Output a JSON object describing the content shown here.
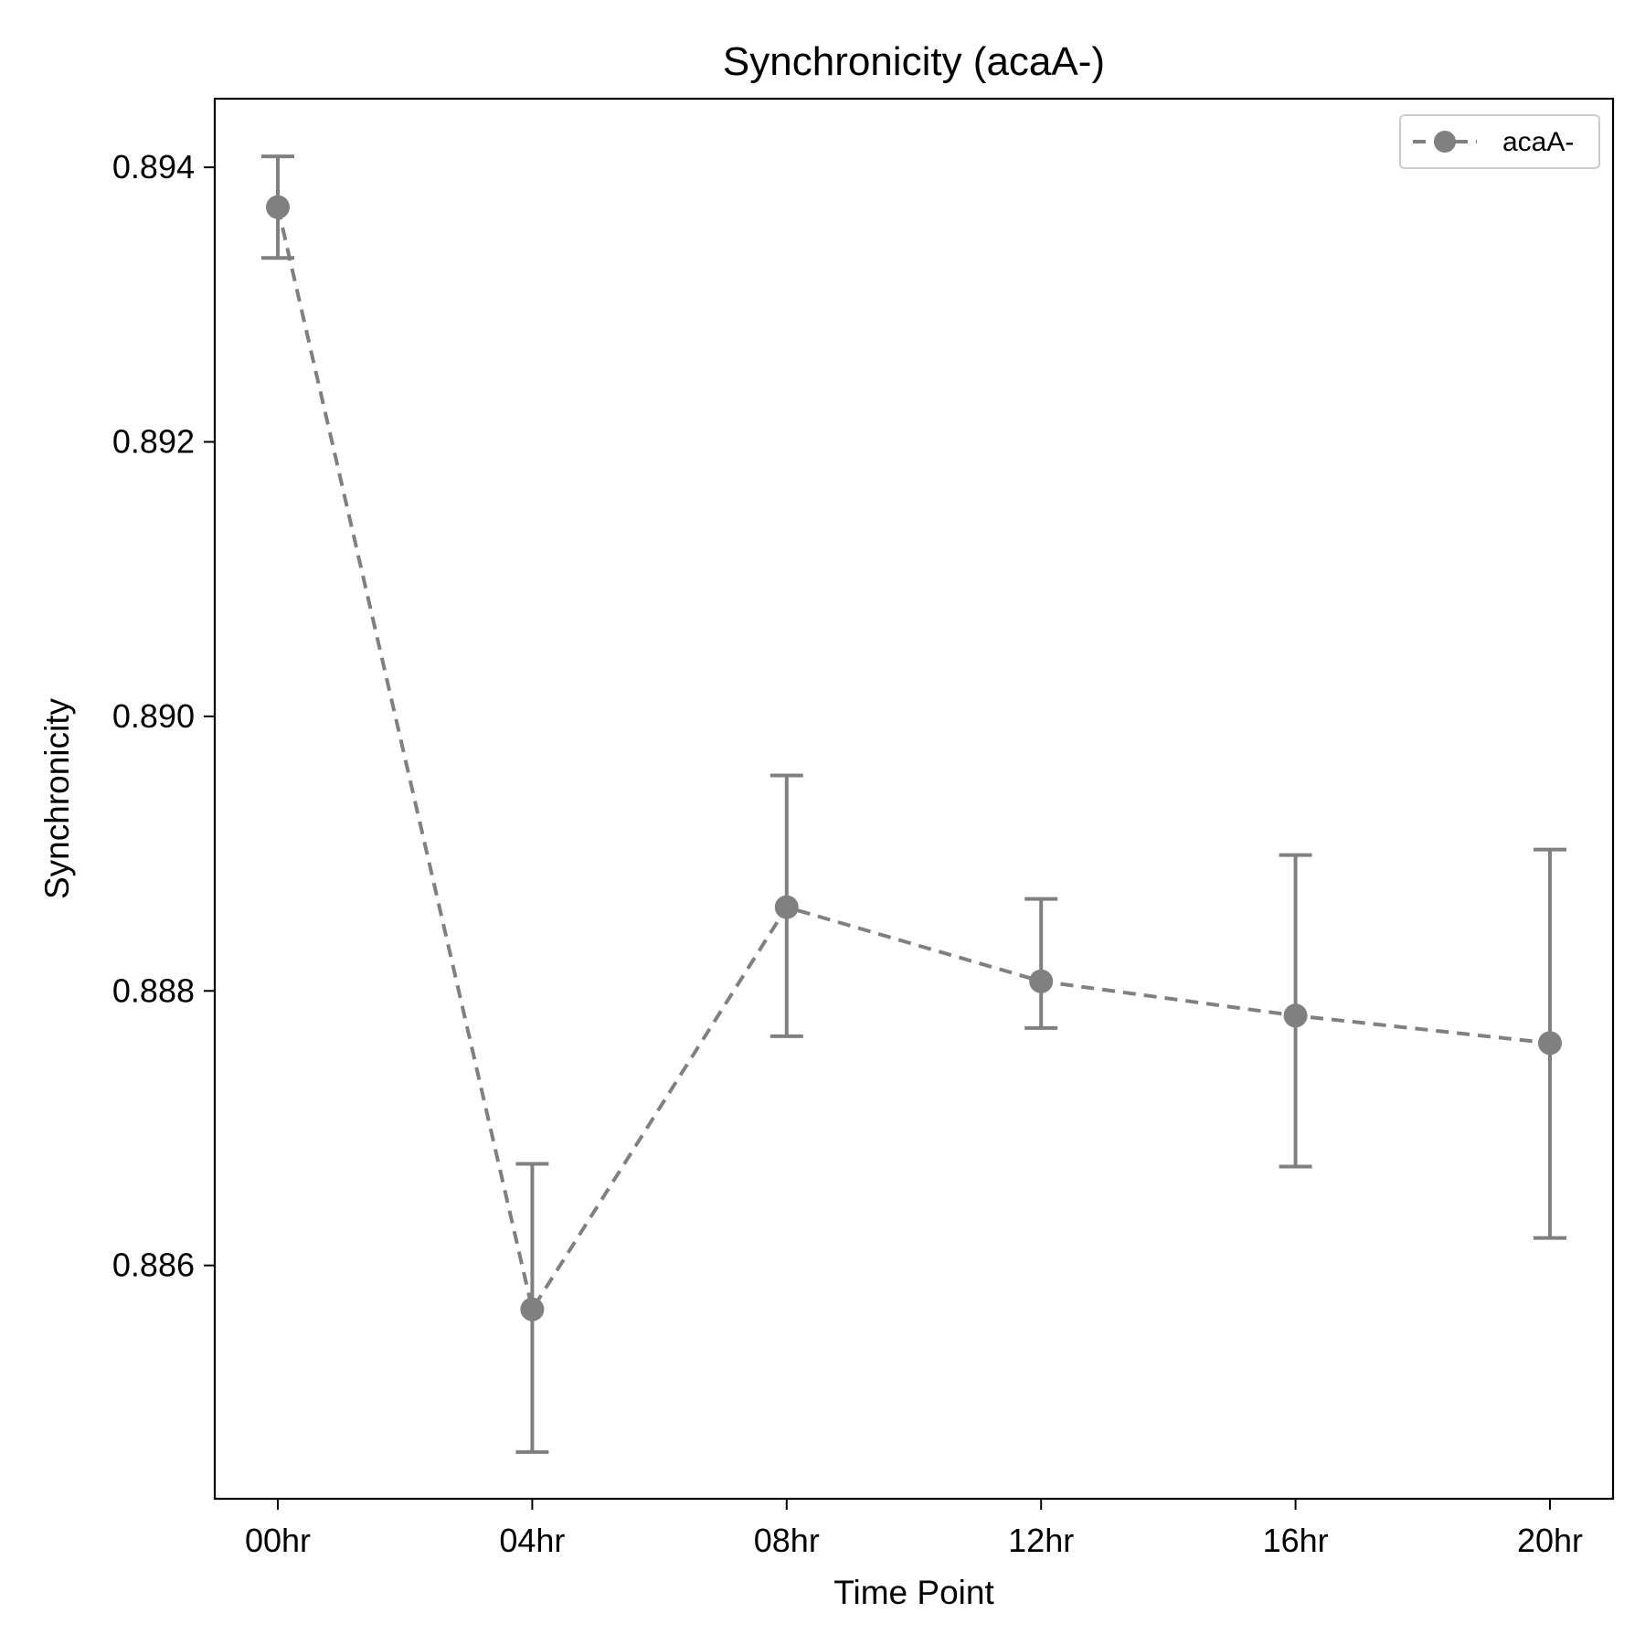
{
  "chart_data": {
    "type": "line",
    "title": "Synchronicity (acaA-)",
    "xlabel": "Time Point",
    "ylabel": "Synchronicity",
    "categories": [
      "00hr",
      "04hr",
      "08hr",
      "12hr",
      "16hr",
      "20hr"
    ],
    "ylim": [
      0.8843,
      0.8945
    ],
    "yticks": [
      0.886,
      0.888,
      0.89,
      0.892,
      0.894
    ],
    "ytick_labels": [
      "0.886",
      "0.888",
      "0.890",
      "0.892",
      "0.894"
    ],
    "grid": false,
    "legend_position": "top-right",
    "series": [
      {
        "name": "acaA-",
        "color": "#808080",
        "line_style": "dashed",
        "marker": "circle",
        "values": [
          0.89371,
          0.88568,
          0.88861,
          0.88807,
          0.88782,
          0.88762
        ],
        "err_low": [
          0.89334,
          0.88464,
          0.88767,
          0.88773,
          0.88672,
          0.8862
        ],
        "err_high": [
          0.89408,
          0.88674,
          0.88957,
          0.88867,
          0.88899,
          0.88903
        ]
      }
    ]
  }
}
